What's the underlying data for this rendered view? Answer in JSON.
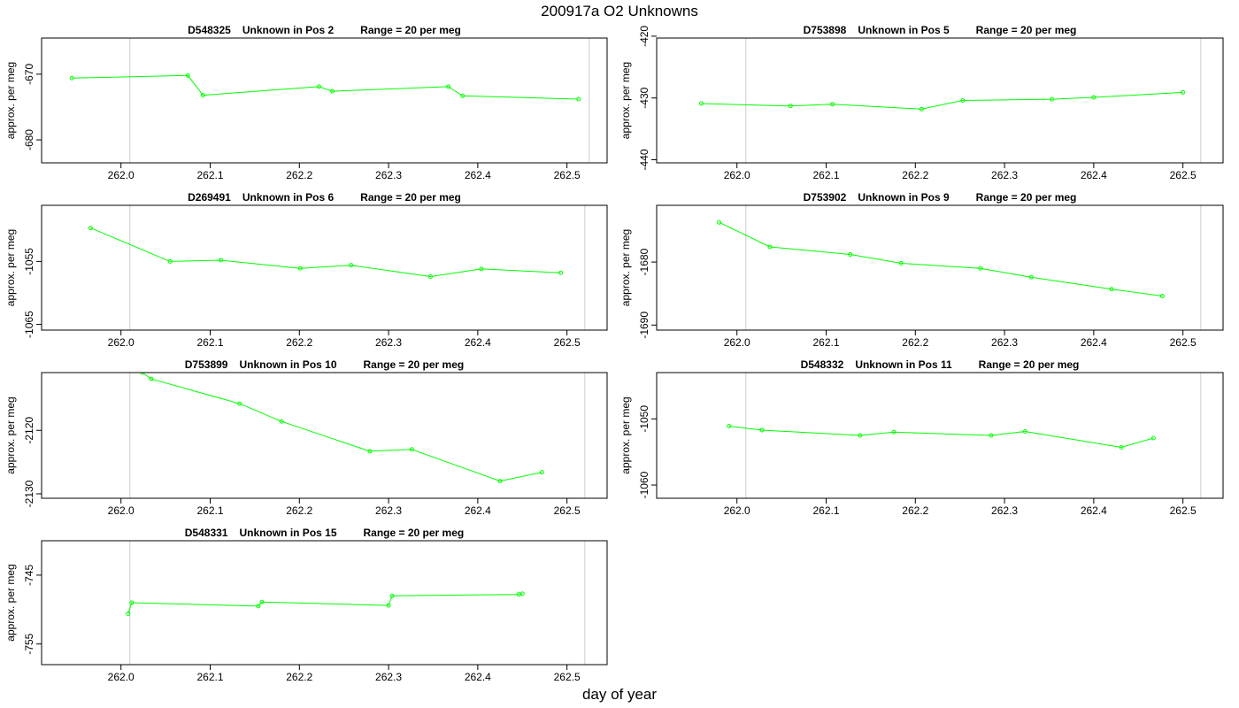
{
  "page": {
    "title": "200917a  O2 Unknowns",
    "xlabel": "day of year"
  },
  "style": {
    "line_color": "#00ff00",
    "frame_color": "#000000",
    "vline_color": "#cccccc"
  },
  "chart_data": [
    {
      "type": "line",
      "title_id": "D548325",
      "title_pos": "Unknown in Pos 2",
      "title_range": "Range = 20 per meg",
      "ylabel": "approx. per meg",
      "xlim": [
        261.911,
        262.545
      ],
      "xticks": [
        "262.0",
        "262.1",
        "262.2",
        "262.3",
        "262.4",
        "262.5"
      ],
      "ylim": [
        -683.5,
        -664.5
      ],
      "yticks": [
        "-670",
        "-680"
      ],
      "vlines": [
        262.01,
        262.525
      ],
      "x": [
        261.945,
        262.075,
        262.092,
        262.222,
        262.237,
        262.367,
        262.383,
        262.513
      ],
      "y": [
        -670.6,
        -670.2,
        -673.2,
        -671.9,
        -672.6,
        -671.9,
        -673.3,
        -673.8
      ]
    },
    {
      "type": "line",
      "title_id": "D753898",
      "title_pos": "Unknown in Pos 5",
      "title_range": "Range = 20 per meg",
      "ylabel": "approx. per meg",
      "xlim": [
        261.91,
        262.545
      ],
      "xticks": [
        "262.0",
        "262.1",
        "262.2",
        "262.3",
        "262.4",
        "262.5"
      ],
      "ylim": [
        -440.5,
        -420.3
      ],
      "yticks": [
        "-420",
        "-430",
        "-440"
      ],
      "vlines": [
        262.01,
        262.52
      ],
      "x": [
        261.96,
        262.06,
        262.107,
        262.207,
        262.253,
        262.353,
        262.4,
        262.5
      ],
      "y": [
        -430.9,
        -431.3,
        -431.0,
        -431.8,
        -430.4,
        -430.2,
        -429.9,
        -429.1
      ]
    },
    {
      "type": "line",
      "title_id": "D269491",
      "title_pos": "Unknown in Pos 6",
      "title_range": "Range = 20 per meg",
      "ylabel": "approx. per meg",
      "xlim": [
        261.911,
        262.545
      ],
      "xticks": [
        "262.0",
        "262.1",
        "262.2",
        "262.3",
        "262.4",
        "262.5"
      ],
      "ylim": [
        -1065.9,
        -1046.1
      ],
      "yticks": [
        "-1055",
        "-1065"
      ],
      "vlines": [
        262.01,
        262.52
      ],
      "x": [
        261.966,
        262.055,
        262.112,
        262.201,
        262.258,
        262.347,
        262.404,
        262.493
      ],
      "y": [
        -1049.7,
        -1055.0,
        -1054.8,
        -1056.1,
        -1055.6,
        -1057.4,
        -1056.2,
        -1056.8
      ]
    },
    {
      "type": "line",
      "title_id": "D753902",
      "title_pos": "Unknown in Pos 9",
      "title_range": "Range = 20 per meg",
      "ylabel": "approx. per meg",
      "xlim": [
        261.91,
        262.545
      ],
      "xticks": [
        "262.0",
        "262.1",
        "262.2",
        "262.3",
        "262.4",
        "262.5"
      ],
      "ylim": [
        -1690.8,
        -1671.0
      ],
      "yticks": [
        "-1680",
        "-1690"
      ],
      "vlines": [
        262.01,
        262.52
      ],
      "x": [
        261.98,
        262.037,
        262.127,
        262.184,
        262.273,
        262.33,
        262.42,
        262.477
      ],
      "y": [
        -1673.7,
        -1677.6,
        -1678.8,
        -1680.2,
        -1681.0,
        -1682.4,
        -1684.3,
        -1685.4
      ]
    },
    {
      "type": "line",
      "title_id": "D753899",
      "title_pos": "Unknown in Pos 10",
      "title_range": "Range = 20 per meg",
      "ylabel": "approx. per meg",
      "xlim": [
        261.911,
        262.545
      ],
      "xticks": [
        "262.0",
        "262.1",
        "262.2",
        "262.3",
        "262.4",
        "262.5"
      ],
      "ylim": [
        -2130.7,
        -2110.9
      ],
      "yticks": [
        "-2120",
        "-2130"
      ],
      "vlines": [
        262.01,
        262.52
      ],
      "x": [
        262.024,
        262.034,
        262.133,
        262.18,
        262.279,
        262.326,
        262.425,
        262.472
      ],
      "y": [
        -2110.9,
        -2111.9,
        -2115.8,
        -2118.6,
        -2123.3,
        -2123.0,
        -2128.0,
        -2126.6
      ]
    },
    {
      "type": "line",
      "title_id": "D548332",
      "title_pos": "Unknown in Pos 11",
      "title_range": "Range = 20 per meg",
      "ylabel": "approx. per meg",
      "xlim": [
        261.91,
        262.545
      ],
      "xticks": [
        "262.0",
        "262.1",
        "262.2",
        "262.3",
        "262.4",
        "262.5"
      ],
      "ylim": [
        -1062.0,
        -1043.0
      ],
      "yticks": [
        "-1050",
        "-1060"
      ],
      "vlines": [
        262.01,
        262.52
      ],
      "x": [
        261.991,
        262.028,
        262.138,
        262.176,
        262.285,
        262.323,
        262.431,
        262.467
      ],
      "y": [
        -1051.1,
        -1051.7,
        -1052.5,
        -1052.0,
        -1052.5,
        -1051.9,
        -1054.3,
        -1052.9
      ]
    },
    {
      "type": "line",
      "title_id": "D548331",
      "title_pos": "Unknown in Pos 15",
      "title_range": "Range = 20 per meg",
      "ylabel": "approx. per meg",
      "xlim": [
        261.911,
        262.545
      ],
      "xticks": [
        "262.0",
        "262.1",
        "262.2",
        "262.3",
        "262.4",
        "262.5"
      ],
      "ylim": [
        -758.0,
        -740.0
      ],
      "yticks": [
        "-745",
        "-755"
      ],
      "vlines": [
        262.01,
        262.52
      ],
      "x": [
        262.008,
        262.012,
        262.154,
        262.158,
        262.3,
        262.304,
        262.446,
        262.45
      ],
      "y": [
        -750.6,
        -749.0,
        -749.5,
        -748.9,
        -749.4,
        -748.0,
        -747.8,
        -747.7
      ]
    }
  ]
}
